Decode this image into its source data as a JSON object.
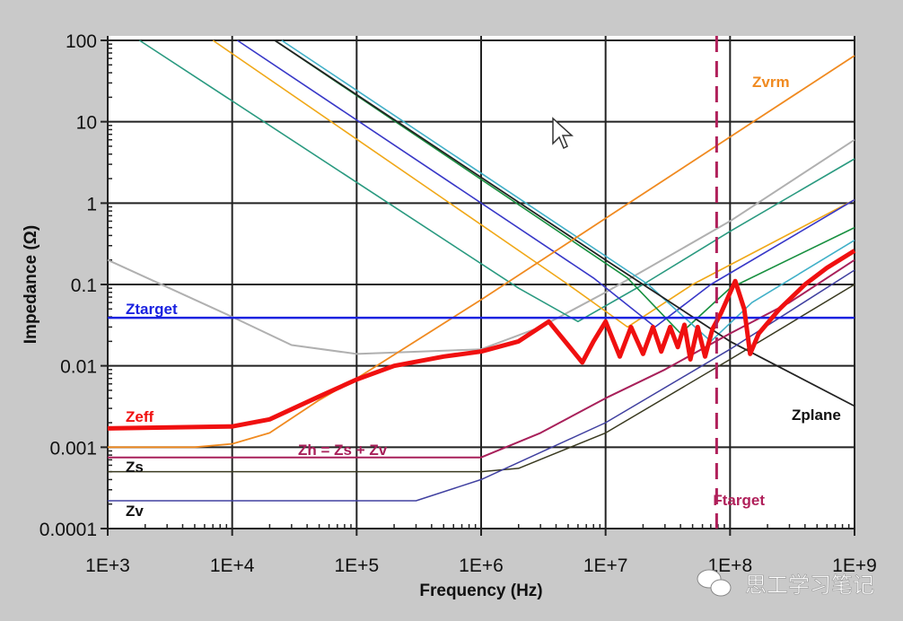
{
  "chart_data": {
    "type": "line",
    "xscale": "log",
    "yscale": "log",
    "xlabel": "Frequency (Hz)",
    "ylabel": "Impedance (Ω)",
    "xlim": [
      1000,
      1000000000
    ],
    "ylim": [
      0.0001,
      100
    ],
    "grid": true,
    "xticks": [
      "1E+3",
      "1E+4",
      "1E+5",
      "1E+6",
      "1E+7",
      "1E+8",
      "1E+9"
    ],
    "yticks": [
      "100",
      "10",
      "1",
      "0.1",
      "0.01",
      "0.001",
      "0.0001"
    ],
    "series": [
      {
        "name": "Gray",
        "label": "",
        "color": "#b0b0b0",
        "width": 2,
        "points": [
          [
            1000,
            0.2
          ],
          [
            10000,
            0.04
          ],
          [
            30000,
            0.018
          ],
          [
            100000,
            0.014
          ],
          [
            1000000,
            0.016
          ],
          [
            3000000,
            0.03
          ],
          [
            10000000,
            0.08
          ],
          [
            100000000,
            0.6
          ],
          [
            1000000000,
            6
          ]
        ]
      },
      {
        "name": "C1",
        "label": "",
        "color": "#2a9a80",
        "width": 1.6,
        "points": [
          [
            1800,
            100
          ],
          [
            2000000,
            0.09
          ],
          [
            6000000,
            0.035
          ],
          [
            20000000,
            0.1
          ],
          [
            100000000,
            0.45
          ],
          [
            1000000000,
            3.5
          ]
        ]
      },
      {
        "name": "C2",
        "label": "",
        "color": "#f0a818",
        "width": 1.6,
        "points": [
          [
            7000,
            100
          ],
          [
            5000000,
            0.1
          ],
          [
            15000000,
            0.03
          ],
          [
            50000000,
            0.1
          ],
          [
            1000000000,
            1.1
          ]
        ]
      },
      {
        "name": "C3",
        "label": "",
        "color": "#3838c8",
        "width": 1.6,
        "points": [
          [
            11000,
            100
          ],
          [
            8000000,
            0.12
          ],
          [
            25000000,
            0.03
          ],
          [
            70000000,
            0.1
          ],
          [
            1000000000,
            1.1
          ]
        ]
      },
      {
        "name": "C4",
        "label": "",
        "color": "#189040",
        "width": 1.6,
        "points": [
          [
            22000,
            100
          ],
          [
            15000000,
            0.12
          ],
          [
            40000000,
            0.025
          ],
          [
            100000000,
            0.09
          ],
          [
            1000000000,
            0.5
          ]
        ]
      },
      {
        "name": "C5",
        "label": "",
        "color": "#40b0c8",
        "width": 1.6,
        "points": [
          [
            25000,
            100
          ],
          [
            22000000,
            0.1
          ],
          [
            70000000,
            0.02
          ],
          [
            150000000,
            0.06
          ],
          [
            1000000000,
            0.35
          ]
        ]
      },
      {
        "name": "Zplane",
        "label": "Zplane",
        "color": "#222222",
        "width": 1.8,
        "points": [
          [
            22000,
            100
          ],
          [
            10000000,
            0.2
          ],
          [
            50000000,
            0.04
          ],
          [
            100000000,
            0.02
          ],
          [
            1000000000,
            0.0032
          ]
        ]
      },
      {
        "name": "Zvrm",
        "label": "Zvrm",
        "color": "#f08a20",
        "width": 1.8,
        "points": [
          [
            1000,
            0.001
          ],
          [
            5000,
            0.001
          ],
          [
            10000,
            0.0011
          ],
          [
            20000,
            0.0015
          ],
          [
            50000,
            0.0038
          ],
          [
            100000,
            0.007
          ],
          [
            1000000,
            0.065
          ],
          [
            10000000,
            0.65
          ],
          [
            100000000,
            6.5
          ],
          [
            1000000000,
            65
          ]
        ]
      },
      {
        "name": "Zs",
        "label": "Zs",
        "color": "#3a3a20",
        "width": 1.5,
        "points": [
          [
            1000,
            0.0005
          ],
          [
            1000000,
            0.0005
          ],
          [
            2000000,
            0.00055
          ],
          [
            10000000,
            0.0015
          ],
          [
            100000000,
            0.012
          ],
          [
            1000000000,
            0.1
          ]
        ]
      },
      {
        "name": "Zv",
        "label": "Zv",
        "color": "#4040a0",
        "width": 1.5,
        "points": [
          [
            1000,
            0.00022
          ],
          [
            300000,
            0.00022
          ],
          [
            1000000,
            0.0004
          ],
          [
            10000000,
            0.002
          ],
          [
            100000000,
            0.016
          ],
          [
            1000000000,
            0.15
          ]
        ]
      },
      {
        "name": "Zh",
        "label": "Zh = Zs + Zv",
        "color": "#a8205a",
        "width": 2,
        "points": [
          [
            1000,
            0.00075
          ],
          [
            1000000,
            0.00075
          ],
          [
            3000000,
            0.0015
          ],
          [
            10000000,
            0.004
          ],
          [
            30000000,
            0.009
          ],
          [
            100000000,
            0.025
          ],
          [
            300000000,
            0.06
          ],
          [
            1000000000,
            0.2
          ]
        ]
      },
      {
        "name": "Ztarget",
        "label": "Ztarget",
        "color": "#1a22e0",
        "width": 2.5,
        "points": [
          [
            1000,
            0.039
          ],
          [
            1000000000,
            0.039
          ]
        ]
      },
      {
        "name": "Zeff",
        "label": "Zeff",
        "color": "#f01010",
        "width": 5,
        "points": [
          [
            1000,
            0.0017
          ],
          [
            10000,
            0.0018
          ],
          [
            20000,
            0.0022
          ],
          [
            50000,
            0.0042
          ],
          [
            100000,
            0.0068
          ],
          [
            200000,
            0.01
          ],
          [
            500000,
            0.013
          ],
          [
            1000000,
            0.015
          ],
          [
            2000000,
            0.02
          ],
          [
            3500000,
            0.035
          ],
          [
            5000000,
            0.018
          ],
          [
            6500000,
            0.011
          ],
          [
            8000000,
            0.02
          ],
          [
            10000000,
            0.035
          ],
          [
            13000000,
            0.013
          ],
          [
            16000000,
            0.03
          ],
          [
            20000000,
            0.014
          ],
          [
            24000000,
            0.03
          ],
          [
            28000000,
            0.015
          ],
          [
            33000000,
            0.03
          ],
          [
            38000000,
            0.017
          ],
          [
            43000000,
            0.032
          ],
          [
            48000000,
            0.012
          ],
          [
            55000000,
            0.03
          ],
          [
            63000000,
            0.013
          ],
          [
            72000000,
            0.028
          ],
          [
            85000000,
            0.045
          ],
          [
            110000000,
            0.11
          ],
          [
            130000000,
            0.05
          ],
          [
            145000000,
            0.014
          ],
          [
            170000000,
            0.025
          ],
          [
            250000000,
            0.05
          ],
          [
            400000000,
            0.1
          ],
          [
            600000000,
            0.16
          ],
          [
            1000000000,
            0.26
          ]
        ]
      }
    ],
    "vline": {
      "name": "Ftarget",
      "label": "Ftarget",
      "x": 78000000,
      "color": "#b0205a"
    }
  },
  "watermark": "思工学习笔记"
}
